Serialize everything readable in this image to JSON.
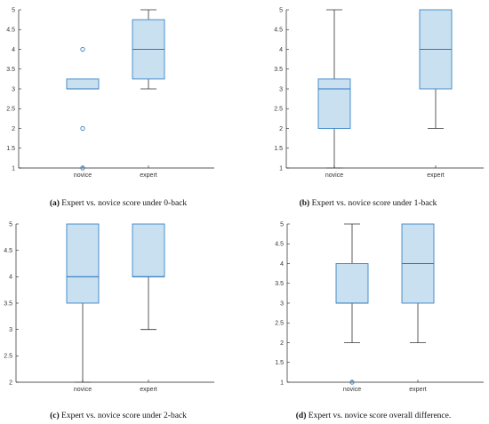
{
  "colors": {
    "box_fill": "#c9e0f1",
    "box_stroke": "#3a86c8",
    "median": "#2f77bf",
    "whisker": "#333333",
    "axis": "#222222",
    "outlier": "#2f77bf"
  },
  "chart_data": [
    {
      "type": "boxplot",
      "caption_letter": "(a)",
      "caption_text": " Expert vs. novice score under 0-back",
      "categories": [
        "novice",
        "expert"
      ],
      "ylim": [
        1,
        5
      ],
      "yticks": [
        "1",
        "1.5",
        "2",
        "2.5",
        "3",
        "3.5",
        "4",
        "4.5",
        "5"
      ],
      "boxes": [
        {
          "category": "novice",
          "whisker_low": 3,
          "q1": 3,
          "median": 3,
          "q3": 3.25,
          "whisker_high": 3.25,
          "outliers": [
            1,
            2,
            4
          ]
        },
        {
          "category": "expert",
          "whisker_low": 3,
          "q1": 3.25,
          "median": 4,
          "q3": 4.75,
          "whisker_high": 5,
          "outliers": []
        }
      ]
    },
    {
      "type": "boxplot",
      "caption_letter": "(b)",
      "caption_text": " Expert vs. novice score under 1-back",
      "categories": [
        "novice",
        "expert"
      ],
      "ylim": [
        1,
        5
      ],
      "yticks": [
        "1",
        "1.5",
        "2",
        "2.5",
        "3",
        "3.5",
        "4",
        "4.5",
        "5"
      ],
      "boxes": [
        {
          "category": "novice",
          "whisker_low": 1,
          "q1": 2,
          "median": 3,
          "q3": 3.25,
          "whisker_high": 5,
          "outliers": []
        },
        {
          "category": "expert",
          "whisker_low": 2,
          "q1": 3,
          "median": 4,
          "q3": 5,
          "whisker_high": 5,
          "outliers": []
        }
      ]
    },
    {
      "type": "boxplot",
      "caption_letter": "(c)",
      "caption_text": " Expert vs. novice score under 2-back",
      "categories": [
        "novice",
        "expert"
      ],
      "ylim": [
        2,
        5
      ],
      "yticks": [
        "2",
        "2.5",
        "3",
        "3.5",
        "4",
        "4.5",
        "5"
      ],
      "boxes": [
        {
          "category": "novice",
          "whisker_low": 2,
          "q1": 3.5,
          "median": 4,
          "q3": 5,
          "whisker_high": 5,
          "outliers": []
        },
        {
          "category": "expert",
          "whisker_low": 3,
          "q1": 4,
          "median": 4,
          "q3": 5,
          "whisker_high": 5,
          "outliers": []
        }
      ]
    },
    {
      "type": "boxplot",
      "caption_letter": "(d)",
      "caption_text": " Expert vs. novice score overall difference.",
      "categories": [
        "novice",
        "expert"
      ],
      "ylim": [
        1,
        5
      ],
      "yticks": [
        "1",
        "1.5",
        "2",
        "2.5",
        "3",
        "3.5",
        "4",
        "4.5",
        "5"
      ],
      "boxes": [
        {
          "category": "novice",
          "whisker_low": 2,
          "q1": 3,
          "median": 3,
          "q3": 4,
          "whisker_high": 5,
          "outliers": [
            1
          ]
        },
        {
          "category": "expert",
          "whisker_low": 2,
          "q1": 3,
          "median": 4,
          "q3": 5,
          "whisker_high": 5,
          "outliers": []
        }
      ]
    }
  ]
}
